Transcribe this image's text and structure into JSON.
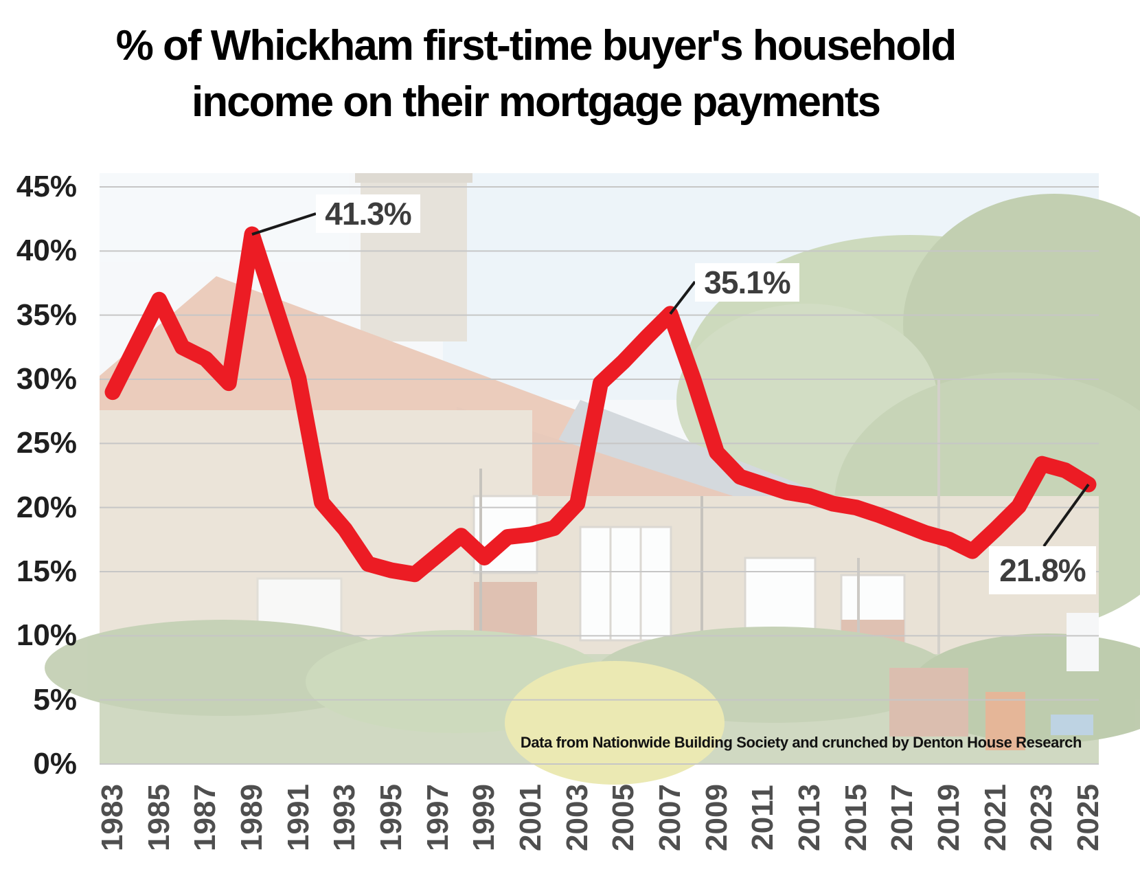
{
  "title_lines": [
    "% of Whickham first-time buyer's household",
    "income on their mortgage payments"
  ],
  "source_note": "Data from Nationwide Building Society and crunched by Denton House Research",
  "colors": {
    "line": "#ec1c24",
    "grid": "#c6c6c6",
    "connector": "#1a1a1a",
    "y_axis_text": "#1f1f1f",
    "x_axis_text": "#4f4f4f",
    "annotation_text": "#3d3d3d",
    "title_text": "#000000",
    "background": "#ffffff"
  },
  "chart_data": {
    "type": "line",
    "title": "% of Whickham first-time buyer's household income on their mortgage payments",
    "xlabel": "",
    "ylabel": "",
    "ylim": [
      0,
      45
    ],
    "grid": true,
    "legend_position": "none",
    "x": [
      1983,
      1984,
      1985,
      1986,
      1987,
      1988,
      1989,
      1990,
      1991,
      1992,
      1993,
      1994,
      1995,
      1996,
      1997,
      1998,
      1999,
      2000,
      2001,
      2002,
      2003,
      2004,
      2005,
      2006,
      2007,
      2008,
      2009,
      2010,
      2011,
      2012,
      2013,
      2014,
      2015,
      2016,
      2017,
      2018,
      2019,
      2020,
      2021,
      2022,
      2023,
      2024,
      2025
    ],
    "values": [
      29.0,
      32.6,
      36.2,
      32.5,
      31.6,
      29.7,
      41.3,
      35.7,
      30.1,
      20.4,
      18.3,
      15.6,
      15.1,
      14.8,
      16.3,
      17.8,
      16.1,
      17.7,
      17.9,
      18.4,
      20.3,
      29.7,
      31.4,
      33.3,
      35.1,
      30.0,
      24.3,
      22.4,
      21.8,
      21.2,
      20.9,
      20.3,
      20.0,
      19.4,
      18.7,
      18.0,
      17.5,
      16.6,
      18.3,
      20.1,
      23.4,
      22.9,
      21.8
    ],
    "x_tick_labels": [
      "1983",
      "1985",
      "1987",
      "1989",
      "1991",
      "1993",
      "1995",
      "1997",
      "1999",
      "2001",
      "2003",
      "2005",
      "2007",
      "2009",
      "2011",
      "2013",
      "2015",
      "2017",
      "2019",
      "2021",
      "2023",
      "2025"
    ],
    "y_ticks": [
      0,
      5,
      10,
      15,
      20,
      25,
      30,
      35,
      40,
      45
    ],
    "y_tick_suffix": "%",
    "annotations": [
      {
        "text": "41.3%",
        "year": 1989,
        "value": 41.3
      },
      {
        "text": "35.1%",
        "year": 2007,
        "value": 35.1
      },
      {
        "text": "21.8%",
        "year": 2025,
        "value": 21.8
      }
    ]
  }
}
